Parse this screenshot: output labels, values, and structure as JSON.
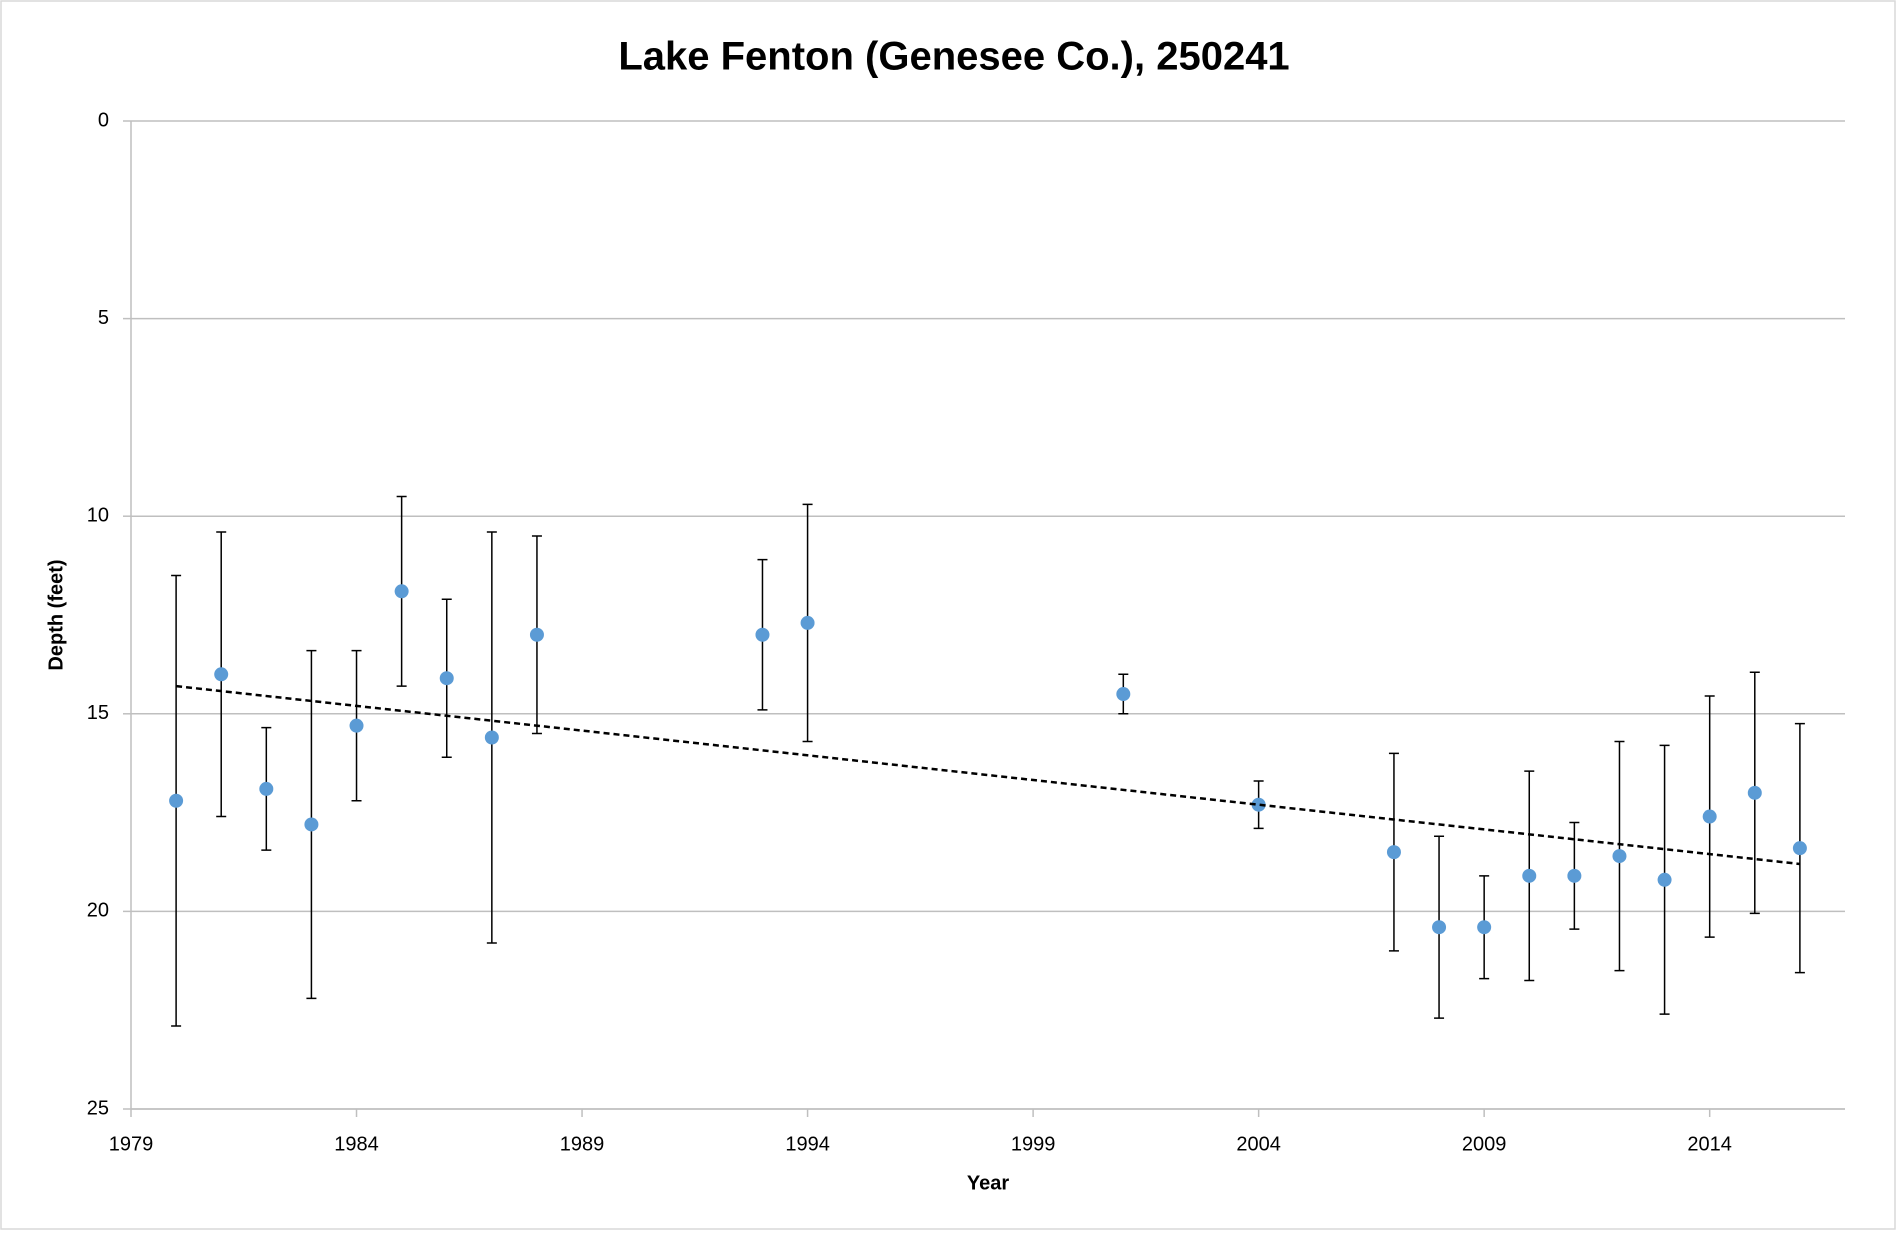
{
  "chart_data": {
    "type": "scatter",
    "title": "Lake Fenton (Genesee Co.), 250241",
    "x_label": "Year",
    "y_label": "Depth (feet)",
    "x": [
      1980,
      1981,
      1982,
      1983,
      1984,
      1985,
      1986,
      1987,
      1988,
      1993,
      1994,
      2001,
      2004,
      2007,
      2008,
      2009,
      2010,
      2011,
      2012,
      2013,
      2014,
      2015,
      2016
    ],
    "series": [
      {
        "color": "#5b9bd5",
        "values": [
          17.2,
          14.0,
          16.9,
          17.8,
          15.3,
          11.9,
          14.1,
          15.6,
          13.0,
          13.0,
          12.7,
          14.5,
          17.3,
          18.5,
          20.4,
          20.4,
          19.1,
          19.1,
          18.6,
          19.2,
          17.6,
          17.0,
          18.4
        ],
        "errors": [
          5.7,
          3.6,
          1.55,
          4.4,
          1.9,
          2.4,
          2.0,
          5.2,
          2.5,
          1.9,
          3.0,
          0.5,
          0.6,
          2.5,
          2.3,
          1.3,
          2.65,
          1.35,
          2.9,
          3.4,
          3.05,
          3.05,
          3.15
        ]
      }
    ],
    "trendline": {
      "x": [
        1980,
        2016
      ],
      "values": [
        14.3,
        18.8
      ],
      "color": "#000000"
    },
    "xlim": [
      1979,
      2017
    ],
    "xticks": [
      1979,
      1984,
      1989,
      1994,
      1999,
      2004,
      2009,
      2014
    ],
    "ylim": [
      25,
      0
    ],
    "yticks": [
      0,
      5,
      10,
      15,
      20,
      25
    ],
    "grid": true
  }
}
